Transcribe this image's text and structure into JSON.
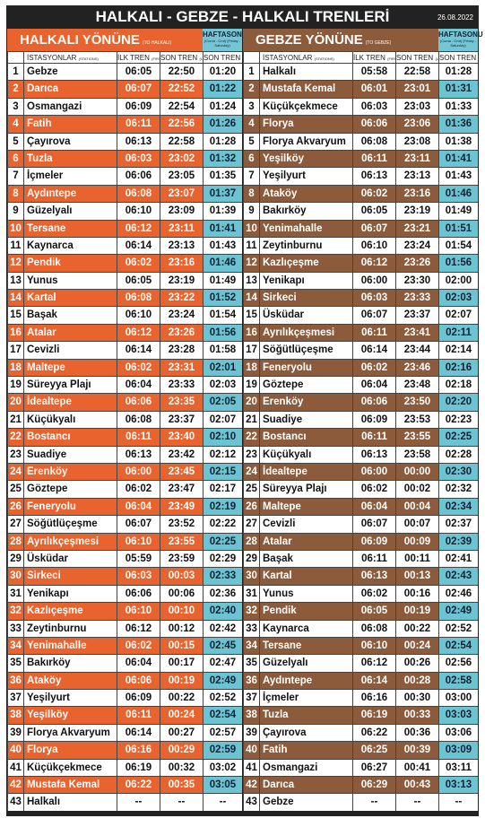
{
  "header": {
    "title": "HALKALI - GEBZE - HALKALI TRENLERİ",
    "date": "26.08.2022"
  },
  "left": {
    "title": "HALKALI YÖNÜNE",
    "subtitle": "(TO HALKALI)",
    "weekend": "HAFTASONU",
    "weekend_note": "(Cuma - Cmt) (Friday - Saturday)",
    "columns": [
      "İSTASYONLAR",
      "İLK TREN",
      "SON TREN",
      "SON TREN"
    ],
    "columns_note": [
      "(STATIONS)",
      "(FIRST)",
      "(LAST)",
      "(LAST)"
    ],
    "rows": [
      [
        1,
        "Gebze",
        "06:05",
        "22:50",
        "01:20"
      ],
      [
        2,
        "Darıca",
        "06:07",
        "22:52",
        "01:22"
      ],
      [
        3,
        "Osmangazi",
        "06:09",
        "22:54",
        "01:24"
      ],
      [
        4,
        "Fatih",
        "06:11",
        "22:56",
        "01:26"
      ],
      [
        5,
        "Çayırova",
        "06:13",
        "22:58",
        "01:28"
      ],
      [
        6,
        "Tuzla",
        "06:03",
        "23:02",
        "01:32"
      ],
      [
        7,
        "İçmeler",
        "06:06",
        "23:05",
        "01:35"
      ],
      [
        8,
        "Aydıntepe",
        "06:08",
        "23:07",
        "01:37"
      ],
      [
        9,
        "Güzelyalı",
        "06:10",
        "23:09",
        "01:39"
      ],
      [
        10,
        "Tersane",
        "06:12",
        "23:11",
        "01:41"
      ],
      [
        11,
        "Kaynarca",
        "06:14",
        "23:13",
        "01:43"
      ],
      [
        12,
        "Pendik",
        "06:02",
        "23:16",
        "01:46"
      ],
      [
        13,
        "Yunus",
        "06:05",
        "23:19",
        "01:49"
      ],
      [
        14,
        "Kartal",
        "06:08",
        "23:22",
        "01:52"
      ],
      [
        15,
        "Başak",
        "06:10",
        "23:24",
        "01:54"
      ],
      [
        16,
        "Atalar",
        "06:12",
        "23:26",
        "01:56"
      ],
      [
        17,
        "Cevizli",
        "06:14",
        "23:28",
        "01:58"
      ],
      [
        18,
        "Maltepe",
        "06:02",
        "23:31",
        "02:01"
      ],
      [
        19,
        "Süreyya Plajı",
        "06:04",
        "23:33",
        "02:03"
      ],
      [
        20,
        "İdealtepe",
        "06:06",
        "23:35",
        "02:05"
      ],
      [
        21,
        "Küçükyalı",
        "06:08",
        "23:37",
        "02:07"
      ],
      [
        22,
        "Bostancı",
        "06:11",
        "23:40",
        "02:10"
      ],
      [
        23,
        "Suadiye",
        "06:13",
        "23:42",
        "02:12"
      ],
      [
        24,
        "Erenköy",
        "06:00",
        "23:45",
        "02:15"
      ],
      [
        25,
        "Göztepe",
        "06:02",
        "23:47",
        "02:17"
      ],
      [
        26,
        "Feneryolu",
        "06:04",
        "23:49",
        "02:19"
      ],
      [
        27,
        "Söğütlüçeşme",
        "06:07",
        "23:52",
        "02:22"
      ],
      [
        28,
        "Ayrılıkçeşmesi",
        "06:10",
        "23:55",
        "02:25"
      ],
      [
        29,
        "Üsküdar",
        "05:59",
        "23:59",
        "02:29"
      ],
      [
        30,
        "Sirkeci",
        "06:03",
        "00:03",
        "02:33"
      ],
      [
        31,
        "Yenikapı",
        "06:06",
        "00:06",
        "02:36"
      ],
      [
        32,
        "Kazlıçeşme",
        "06:10",
        "00:10",
        "02:40"
      ],
      [
        33,
        "Zeytinburnu",
        "06:12",
        "00:12",
        "02:42"
      ],
      [
        34,
        "Yenimahalle",
        "06:02",
        "00:15",
        "02:45"
      ],
      [
        35,
        "Bakırköy",
        "06:04",
        "00:17",
        "02:47"
      ],
      [
        36,
        "Ataköy",
        "06:06",
        "00:19",
        "02:49"
      ],
      [
        37,
        "Yeşilyurt",
        "06:09",
        "00:22",
        "02:52"
      ],
      [
        38,
        "Yeşilköy",
        "06:11",
        "00:24",
        "02:54"
      ],
      [
        39,
        "Florya Akvaryum",
        "06:14",
        "00:27",
        "02:57"
      ],
      [
        40,
        "Florya",
        "06:16",
        "00:29",
        "02:59"
      ],
      [
        41,
        "Küçükçekmece",
        "06:19",
        "00:32",
        "03:02"
      ],
      [
        42,
        "Mustafa Kemal",
        "06:22",
        "00:35",
        "03:05"
      ],
      [
        43,
        "Halkalı",
        "--",
        "--",
        "--"
      ]
    ]
  },
  "right": {
    "title": "GEBZE YÖNÜNE",
    "subtitle": "(TO GEBZE)",
    "weekend": "HAFTASONU",
    "weekend_note": "(Cuma - Cmt) (Friday - Saturday)",
    "columns": [
      "İSTASYONLAR",
      "İLK TREN",
      "SON TREN",
      "SON TREN"
    ],
    "columns_note": [
      "(STATIONS)",
      "(FIRST)",
      "(LAST)",
      "(LAST)"
    ],
    "rows": [
      [
        1,
        "Halkalı",
        "05:58",
        "22:58",
        "01:28"
      ],
      [
        2,
        "Mustafa Kemal",
        "06:01",
        "23:01",
        "01:31"
      ],
      [
        3,
        "Küçükçekmece",
        "06:03",
        "23:03",
        "01:33"
      ],
      [
        4,
        "Florya",
        "06:06",
        "23:06",
        "01:36"
      ],
      [
        5,
        "Florya Akvaryum",
        "06:08",
        "23:08",
        "01:38"
      ],
      [
        6,
        "Yeşilköy",
        "06:11",
        "23:11",
        "01:41"
      ],
      [
        7,
        "Yeşilyurt",
        "06:13",
        "23:13",
        "01:43"
      ],
      [
        8,
        "Ataköy",
        "06:02",
        "23:16",
        "01:46"
      ],
      [
        9,
        "Bakırköy",
        "06:05",
        "23:19",
        "01:49"
      ],
      [
        10,
        "Yenimahalle",
        "06:07",
        "23:21",
        "01:51"
      ],
      [
        11,
        "Zeytinburnu",
        "06:10",
        "23:24",
        "01:54"
      ],
      [
        12,
        "Kazlıçeşme",
        "06:12",
        "23:26",
        "01:56"
      ],
      [
        13,
        "Yenikapı",
        "06:00",
        "23:30",
        "02:00"
      ],
      [
        14,
        "Sirkeci",
        "06:03",
        "23:33",
        "02:03"
      ],
      [
        15,
        "Üsküdar",
        "06:07",
        "23:37",
        "02:07"
      ],
      [
        16,
        "Ayrılıkçeşmesi",
        "06:11",
        "23:41",
        "02:11"
      ],
      [
        17,
        "Söğütlüçeşme",
        "06:14",
        "23:44",
        "02:14"
      ],
      [
        18,
        "Feneryolu",
        "06:02",
        "23:46",
        "02:16"
      ],
      [
        19,
        "Göztepe",
        "06:04",
        "23:48",
        "02:18"
      ],
      [
        20,
        "Erenköy",
        "06:06",
        "23:50",
        "02:20"
      ],
      [
        21,
        "Suadiye",
        "06:09",
        "23:53",
        "02:23"
      ],
      [
        22,
        "Bostancı",
        "06:11",
        "23:55",
        "02:25"
      ],
      [
        23,
        "Küçükyalı",
        "06:13",
        "23:58",
        "02:28"
      ],
      [
        24,
        "İdealtepe",
        "06:00",
        "00:00",
        "02:30"
      ],
      [
        25,
        "Süreyya Plajı",
        "06:02",
        "00:02",
        "02:32"
      ],
      [
        26,
        "Maltepe",
        "06:04",
        "00:04",
        "02:34"
      ],
      [
        27,
        "Cevizli",
        "06:07",
        "00:07",
        "02:37"
      ],
      [
        28,
        "Atalar",
        "06:09",
        "00:09",
        "02:39"
      ],
      [
        29,
        "Başak",
        "06:11",
        "00:11",
        "02:41"
      ],
      [
        30,
        "Kartal",
        "06:13",
        "00:13",
        "02:43"
      ],
      [
        31,
        "Yunus",
        "06:02",
        "00:16",
        "02:46"
      ],
      [
        32,
        "Pendik",
        "06:05",
        "00:19",
        "02:49"
      ],
      [
        33,
        "Kaynarca",
        "06:08",
        "00:22",
        "02:52"
      ],
      [
        34,
        "Tersane",
        "06:10",
        "00:24",
        "02:54"
      ],
      [
        35,
        "Güzelyalı",
        "06:12",
        "00:26",
        "02:56"
      ],
      [
        36,
        "Aydıntepe",
        "06:14",
        "00:28",
        "02:58"
      ],
      [
        37,
        "İçmeler",
        "06:16",
        "00:30",
        "03:00"
      ],
      [
        38,
        "Tuzla",
        "06:19",
        "00:33",
        "03:03"
      ],
      [
        39,
        "Çayırova",
        "06:22",
        "00:36",
        "03:06"
      ],
      [
        40,
        "Fatih",
        "06:25",
        "00:39",
        "03:09"
      ],
      [
        41,
        "Osmangazi",
        "06:27",
        "00:41",
        "03:11"
      ],
      [
        42,
        "Darıca",
        "06:29",
        "00:43",
        "03:13"
      ],
      [
        43,
        "Gebze",
        "--",
        "--",
        "--"
      ]
    ]
  }
}
